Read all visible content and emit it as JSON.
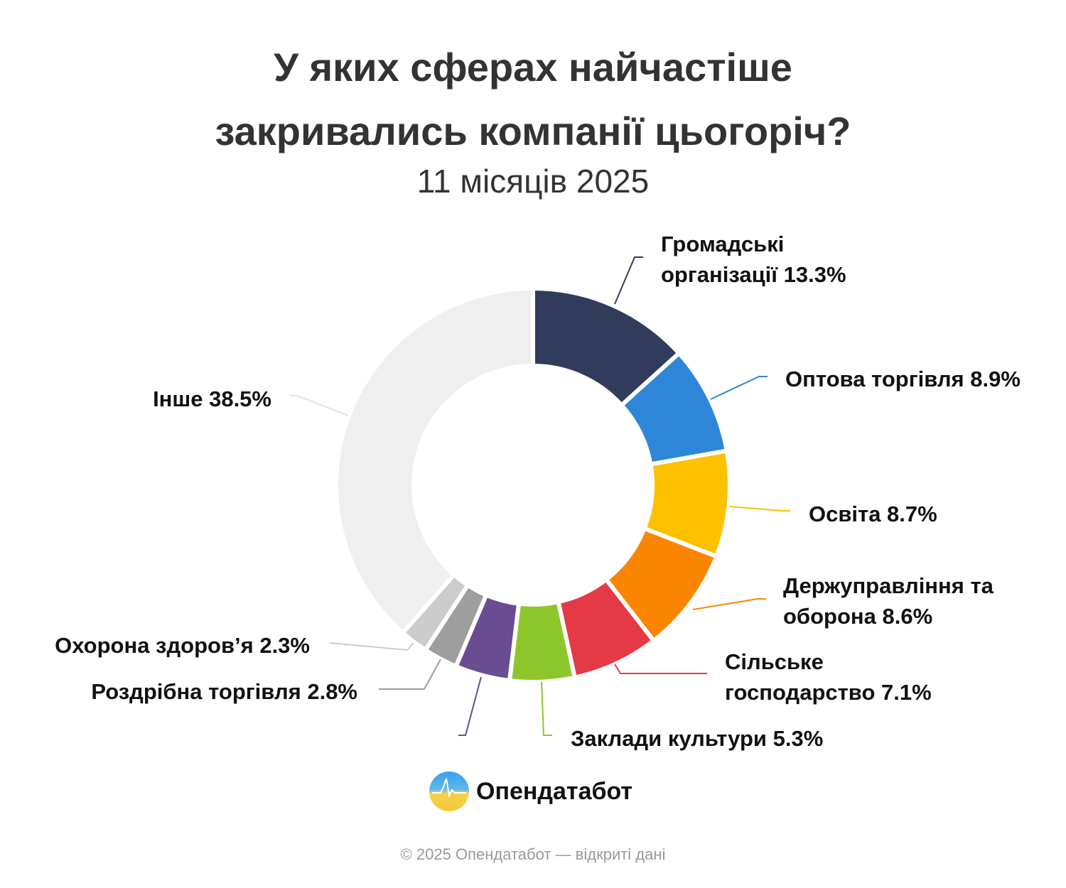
{
  "chart_data": {
    "type": "pie",
    "variant": "donut",
    "title_lines": [
      "У яких сферах найчастіше",
      "закривались компанії цьогоріч?"
    ],
    "subtitle": "11 місяців 2025",
    "slices": [
      {
        "label": "Громадські організації 13.3%",
        "label_lines": [
          "Громадські",
          "організації 13.3%"
        ],
        "value": 13.3,
        "color": "#313c5c"
      },
      {
        "label": "Оптова торгівля 8.9%",
        "label_lines": [
          "Оптова торгівля 8.9%"
        ],
        "value": 8.9,
        "color": "#2e86d8"
      },
      {
        "label": "Освіта 8.7%",
        "label_lines": [
          "Освіта 8.7%"
        ],
        "value": 8.7,
        "color": "#fdc100"
      },
      {
        "label": "Держуправління та оборона 8.6%",
        "label_lines": [
          "Держуправління та",
          "оборона 8.6%"
        ],
        "value": 8.6,
        "color": "#fb8500"
      },
      {
        "label": "Сільське господарство 7.1%",
        "label_lines": [
          "Сільське",
          "господарство 7.1%"
        ],
        "value": 7.1,
        "color": "#e63946"
      },
      {
        "label": "Заклади культури 5.3%",
        "label_lines": [
          "Заклади культури 5.3%"
        ],
        "value": 5.3,
        "color": "#8dc62b"
      },
      {
        "label": "",
        "label_lines": [],
        "value": 4.5,
        "color": "#6a4c93"
      },
      {
        "label": "Роздрібна торгівля 2.8%",
        "label_lines": [
          "Роздрібна торгівля 2.8%"
        ],
        "value": 2.8,
        "color": "#9e9e9e"
      },
      {
        "label": "Охорона здоров’я 2.3%",
        "label_lines": [
          "Охорона здоров’я 2.3%"
        ],
        "value": 2.3,
        "color": "#cccccc"
      },
      {
        "label": "Інше 38.5%",
        "label_lines": [
          "Інше 38.5%"
        ],
        "value": 38.5,
        "color": "#efefef"
      }
    ],
    "start": "top",
    "direction": "clockwise",
    "legend": "none"
  },
  "brand": {
    "name": "Опендатабот",
    "icon": "opendatabot-logo"
  },
  "footer": "© 2025 Опендатабот — відкриті дані"
}
